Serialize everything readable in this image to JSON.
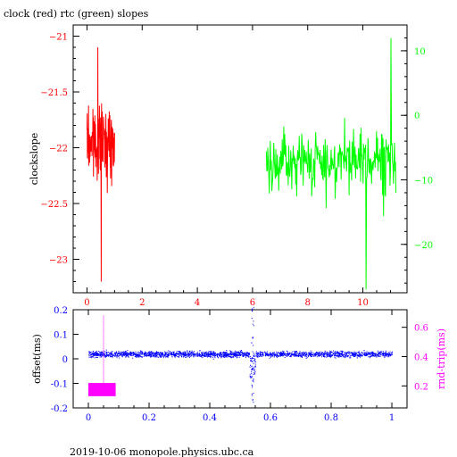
{
  "page": {
    "title": "clock (red) rtc (green) slopes",
    "footer": "2019-10-06  monopole.physics.ubc.ca"
  },
  "colors": {
    "clock": "#ff0000",
    "rtc": "#00ff00",
    "offset": "#0000ff",
    "rndtrip": "#ff00ff",
    "axis": "#000000"
  },
  "chart_data": [
    {
      "type": "line",
      "title": "clock (red) rtc (green) slopes",
      "ylabel": "clockslope",
      "xlim": [
        -0.5,
        11.6
      ],
      "ylim": [
        -23.3,
        -20.9
      ],
      "y2lim": [
        -27.5,
        14
      ],
      "x_ticks": [
        0,
        2,
        4,
        6,
        8,
        10
      ],
      "y_ticks": [
        -21,
        -21.5,
        -22,
        -22.5,
        -23
      ],
      "y2_ticks": [
        10,
        0,
        -10,
        -20
      ],
      "grid": false,
      "series": [
        {
          "name": "clock",
          "axis": "left",
          "x_range": [
            0,
            1
          ],
          "approx_mean": -21.95,
          "approx_min": -23.2,
          "approx_max": -21.1
        },
        {
          "name": "rtc",
          "axis": "right",
          "x_range": [
            6.5,
            11.2
          ],
          "approx_mean": -7,
          "approx_min": -27,
          "approx_max": 12
        }
      ]
    },
    {
      "type": "scatter",
      "ylabel": "offset(ms)",
      "y2label": "rnd-trip(ms)",
      "xlim": [
        -0.05,
        1.05
      ],
      "ylim": [
        -0.2,
        0.2
      ],
      "y2lim": [
        0.05,
        0.72
      ],
      "x_ticks": [
        "0",
        "0.2",
        "0.4",
        "0.6",
        "0.8",
        "1"
      ],
      "y_ticks": [
        "0.2",
        "0.1",
        "0",
        "-0.1",
        "-0.2"
      ],
      "y2_ticks": [
        "0.6",
        "0.4",
        "0.2"
      ],
      "grid": false,
      "series": [
        {
          "name": "offset",
          "axis": "left",
          "x_range": [
            0,
            1
          ],
          "approx_mean": 0.02,
          "approx_spread": 0.02,
          "dip_at_x": 0.54,
          "dip_min": -0.18
        },
        {
          "name": "rnd-trip",
          "axis": "right",
          "x_range": [
            0,
            0.09
          ],
          "approx_range": [
            0.13,
            0.22
          ],
          "spike_at_x": 0.05,
          "spike_max": 0.68
        }
      ]
    }
  ]
}
